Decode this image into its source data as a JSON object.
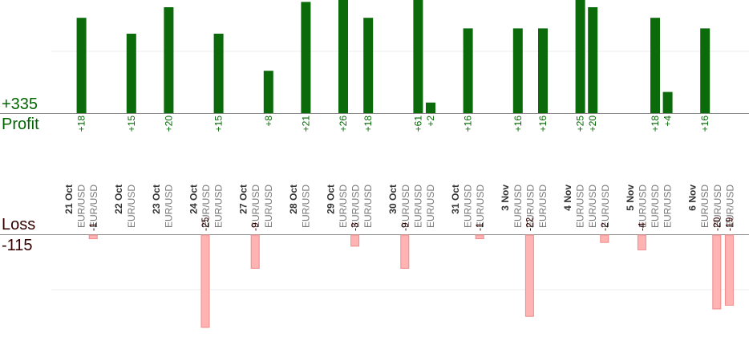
{
  "summary": {
    "profit_total": "+335",
    "profit_label": "Profit",
    "loss_label": "Loss",
    "loss_total": "-115"
  },
  "colors": {
    "profit_bar": "#0b6b0b",
    "profit_text": "#006600",
    "loss_bar": "#ffb3b3",
    "loss_bar_edge": "#f08a8a",
    "loss_text": "#330000",
    "axis": "#888888",
    "grid": "#eeeeee",
    "date_text": "#333333",
    "symbol_text": "#777777"
  },
  "chart_data": {
    "type": "bar",
    "title": "",
    "grid": true,
    "days": [
      {
        "date": "21 Oct",
        "trades": [
          {
            "symbol": "EUR/USD",
            "profit": 18,
            "loss": null
          },
          {
            "symbol": "EUR/USD",
            "profit": null,
            "loss": -1
          }
        ]
      },
      {
        "date": "22 Oct",
        "trades": [
          {
            "symbol": "EUR/USD",
            "profit": 15,
            "loss": null
          }
        ]
      },
      {
        "date": "23 Oct",
        "trades": [
          {
            "symbol": "EUR/USD",
            "profit": 20,
            "loss": null
          }
        ]
      },
      {
        "date": "24 Oct",
        "trades": [
          {
            "symbol": "EUR/USD",
            "profit": null,
            "loss": -25
          },
          {
            "symbol": "EUR/USD",
            "profit": 15,
            "loss": null
          }
        ]
      },
      {
        "date": "27 Oct",
        "trades": [
          {
            "symbol": "EUR/USD",
            "profit": null,
            "loss": -9
          },
          {
            "symbol": "EUR/USD",
            "profit": 8,
            "loss": null
          }
        ]
      },
      {
        "date": "28 Oct",
        "trades": [
          {
            "symbol": "EUR/USD",
            "profit": 21,
            "loss": null
          }
        ]
      },
      {
        "date": "29 Oct",
        "trades": [
          {
            "symbol": "EUR/USD",
            "profit": 26,
            "loss": null
          },
          {
            "symbol": "EUR/USD",
            "profit": null,
            "loss": -3
          },
          {
            "symbol": "EUR/USD",
            "profit": 18,
            "loss": null
          }
        ]
      },
      {
        "date": "30 Oct",
        "trades": [
          {
            "symbol": "EUR/USD",
            "profit": null,
            "loss": -9
          },
          {
            "symbol": "EUR/USD",
            "profit": 61,
            "loss": null
          },
          {
            "symbol": "EUR/USD",
            "profit": 2,
            "loss": null
          }
        ]
      },
      {
        "date": "31 Oct",
        "trades": [
          {
            "symbol": "EUR/USD",
            "profit": 16,
            "loss": null
          },
          {
            "symbol": "EUR/USD",
            "profit": null,
            "loss": -1
          }
        ]
      },
      {
        "date": "3 Nov",
        "trades": [
          {
            "symbol": "EUR/USD",
            "profit": 16,
            "loss": null
          },
          {
            "symbol": "EUR/USD",
            "profit": null,
            "loss": -22
          },
          {
            "symbol": "EUR/USD",
            "profit": 16,
            "loss": null
          }
        ]
      },
      {
        "date": "4 Nov",
        "trades": [
          {
            "symbol": "EUR/USD",
            "profit": 25,
            "loss": null
          },
          {
            "symbol": "EUR/USD",
            "profit": 20,
            "loss": null
          },
          {
            "symbol": "EUR/USD",
            "profit": null,
            "loss": -2
          }
        ]
      },
      {
        "date": "5 Nov",
        "trades": [
          {
            "symbol": "EUR/USD",
            "profit": null,
            "loss": -4
          },
          {
            "symbol": "EUR/USD",
            "profit": 18,
            "loss": null
          },
          {
            "symbol": "EUR/USD",
            "profit": 4,
            "loss": null
          }
        ]
      },
      {
        "date": "6 Nov",
        "trades": [
          {
            "symbol": "EUR/USD",
            "profit": 16,
            "loss": null
          },
          {
            "symbol": "EUR/USD",
            "profit": null,
            "loss": -20
          },
          {
            "symbol": "EUR/USD",
            "profit": null,
            "loss": -19
          }
        ]
      }
    ]
  }
}
